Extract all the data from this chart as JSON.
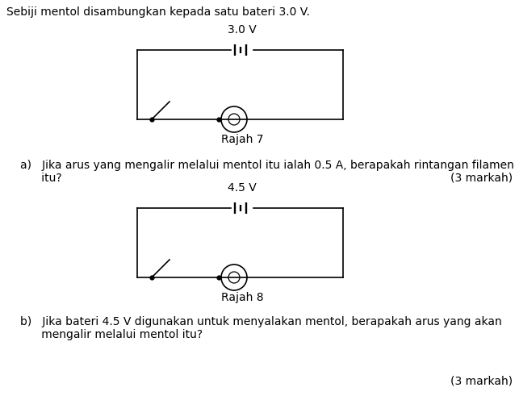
{
  "bg_color": "#ffffff",
  "text_color": "#000000",
  "intro_text": "Sebiji mentol disambungkan kepada satu bateri 3.0 V.",
  "diagram1_label": "3.0 V",
  "diagram1_caption": "Rajah 7",
  "question_a_line1": "a)   Jika arus yang mengalir melalui mentol itu ialah 0.5 A, berapakah rintangan filamen",
  "question_a_line2": "      itu?",
  "marks_a": "(3 markah)",
  "diagram2_label": "4.5 V",
  "diagram2_caption": "Rajah 8",
  "question_b_line1": "b)   Jika bateri 4.5 V digunakan untuk menyalakan mentol, berapakah arus yang akan",
  "question_b_line2": "      mengalir melalui mentol itu?",
  "marks_b": "(3 markah)"
}
